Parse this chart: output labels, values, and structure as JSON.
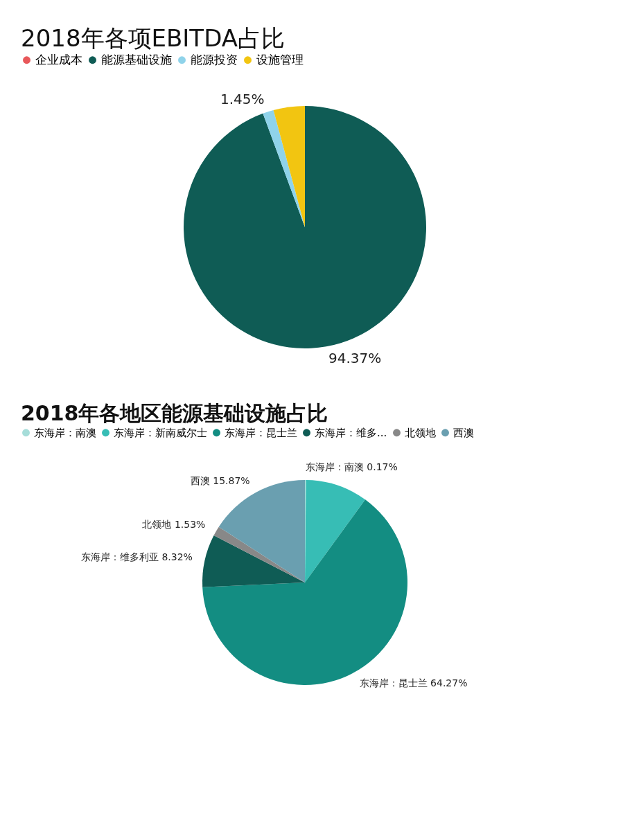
{
  "chart_data": [
    {
      "type": "pie",
      "title": "2018年各项EBITDA占比",
      "legend": "top left",
      "categories": [
        "企业成本",
        "能源基础设施",
        "能源投资",
        "设施管理"
      ],
      "values": [
        0,
        94.37,
        1.45,
        4.18
      ],
      "colors": [
        "#e8585a",
        "#0f5c55",
        "#8fd3ea",
        "#f2c511"
      ],
      "value_labels": [
        null,
        "94.37%",
        "1.45%",
        null
      ]
    },
    {
      "type": "pie",
      "title": "2018年各地区能源基础设施占比",
      "legend": "top left",
      "categories": [
        "东海岸：南澳",
        "东海岸：新南威尔士",
        "东海岸：昆士兰",
        "东海岸：维多...",
        "北领地",
        "西澳"
      ],
      "values": [
        0.17,
        9.84,
        64.27,
        8.32,
        1.53,
        15.87
      ],
      "colors": [
        "#a6ddd9",
        "#37bdb5",
        "#138d82",
        "#0f5c55",
        "#888888",
        "#6a9fb0"
      ],
      "value_labels": [
        "东海岸：南澳 0.17%",
        null,
        "东海岸：昆士兰 64.27%",
        "东海岸：维多利亚 8.32%",
        "北领地 1.53%",
        "西澳 15.87%"
      ]
    }
  ]
}
